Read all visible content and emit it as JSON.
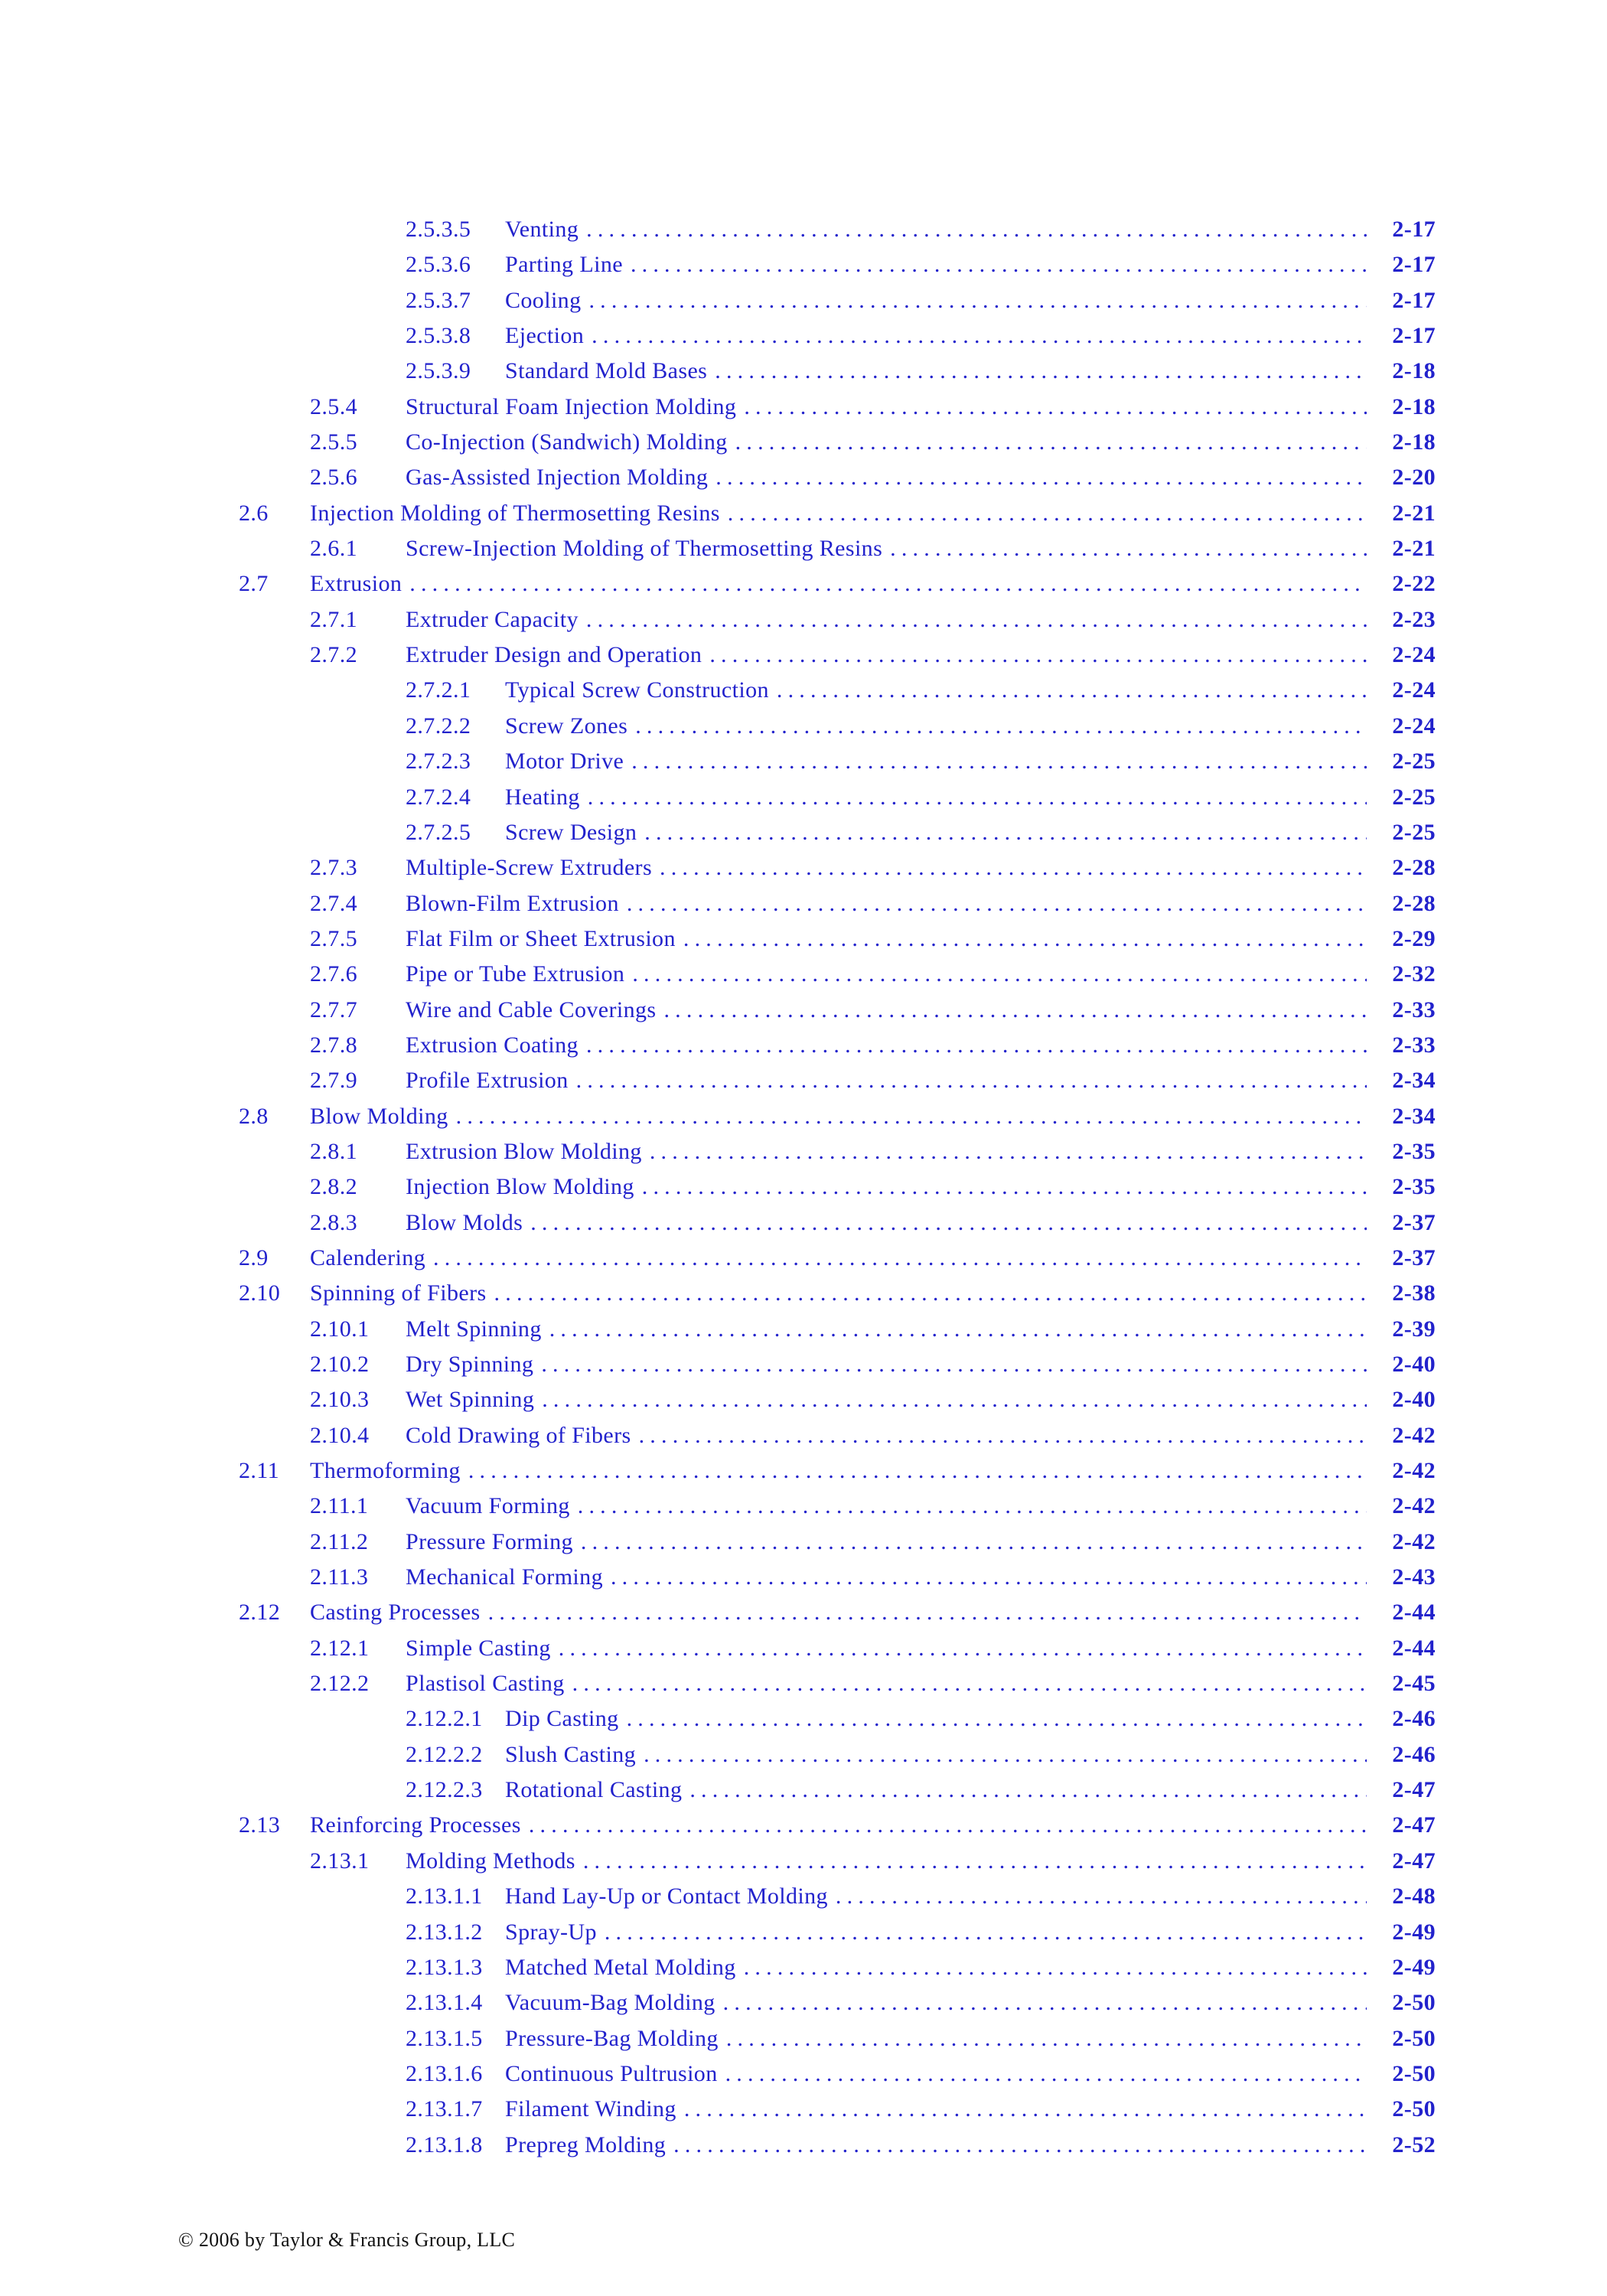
{
  "page": {
    "link_color": "#2222cc",
    "footer_color": "#111111",
    "footer_text": "© 2006 by Taylor & Francis Group, LLC"
  },
  "toc": {
    "entries": [
      {
        "number": "2.5.3.5",
        "title": "Venting",
        "page": "2-17",
        "level": 4
      },
      {
        "number": "2.5.3.6",
        "title": "Parting Line",
        "page": "2-17",
        "level": 4
      },
      {
        "number": "2.5.3.7",
        "title": "Cooling",
        "page": "2-17",
        "level": 4
      },
      {
        "number": "2.5.3.8",
        "title": "Ejection",
        "page": "2-17",
        "level": 4
      },
      {
        "number": "2.5.3.9",
        "title": "Standard Mold Bases",
        "page": "2-18",
        "level": 4
      },
      {
        "number": "2.5.4",
        "title": "Structural Foam Injection Molding",
        "page": "2-18",
        "level": 3
      },
      {
        "number": "2.5.5",
        "title": "Co-Injection (Sandwich) Molding",
        "page": "2-18",
        "level": 3
      },
      {
        "number": "2.5.6",
        "title": "Gas-Assisted Injection Molding",
        "page": "2-20",
        "level": 3
      },
      {
        "number": "2.6",
        "title": "Injection Molding of Thermosetting Resins",
        "page": "2-21",
        "level": 2
      },
      {
        "number": "2.6.1",
        "title": "Screw-Injection Molding of Thermosetting Resins",
        "page": "2-21",
        "level": 3
      },
      {
        "number": "2.7",
        "title": "Extrusion",
        "page": "2-22",
        "level": 2
      },
      {
        "number": "2.7.1",
        "title": "Extruder Capacity",
        "page": "2-23",
        "level": 3
      },
      {
        "number": "2.7.2",
        "title": "Extruder Design and Operation",
        "page": "2-24",
        "level": 3
      },
      {
        "number": "2.7.2.1",
        "title": "Typical Screw Construction",
        "page": "2-24",
        "level": 4
      },
      {
        "number": "2.7.2.2",
        "title": "Screw Zones",
        "page": "2-24",
        "level": 4
      },
      {
        "number": "2.7.2.3",
        "title": "Motor Drive",
        "page": "2-25",
        "level": 4
      },
      {
        "number": "2.7.2.4",
        "title": "Heating",
        "page": "2-25",
        "level": 4
      },
      {
        "number": "2.7.2.5",
        "title": "Screw Design",
        "page": "2-25",
        "level": 4
      },
      {
        "number": "2.7.3",
        "title": "Multiple-Screw Extruders",
        "page": "2-28",
        "level": 3
      },
      {
        "number": "2.7.4",
        "title": "Blown-Film Extrusion",
        "page": "2-28",
        "level": 3
      },
      {
        "number": "2.7.5",
        "title": "Flat Film or Sheet Extrusion",
        "page": "2-29",
        "level": 3
      },
      {
        "number": "2.7.6",
        "title": "Pipe or Tube Extrusion",
        "page": "2-32",
        "level": 3
      },
      {
        "number": "2.7.7",
        "title": "Wire and Cable Coverings",
        "page": "2-33",
        "level": 3
      },
      {
        "number": "2.7.8",
        "title": "Extrusion Coating",
        "page": "2-33",
        "level": 3
      },
      {
        "number": "2.7.9",
        "title": "Profile Extrusion",
        "page": "2-34",
        "level": 3
      },
      {
        "number": "2.8",
        "title": "Blow Molding",
        "page": "2-34",
        "level": 2
      },
      {
        "number": "2.8.1",
        "title": "Extrusion Blow Molding",
        "page": "2-35",
        "level": 3
      },
      {
        "number": "2.8.2",
        "title": "Injection Blow Molding",
        "page": "2-35",
        "level": 3
      },
      {
        "number": "2.8.3",
        "title": "Blow Molds",
        "page": "2-37",
        "level": 3
      },
      {
        "number": "2.9",
        "title": "Calendering",
        "page": "2-37",
        "level": 2
      },
      {
        "number": "2.10",
        "title": "Spinning of Fibers",
        "page": "2-38",
        "level": 2
      },
      {
        "number": "2.10.1",
        "title": "Melt Spinning",
        "page": "2-39",
        "level": 3
      },
      {
        "number": "2.10.2",
        "title": "Dry Spinning",
        "page": "2-40",
        "level": 3
      },
      {
        "number": "2.10.3",
        "title": "Wet Spinning",
        "page": "2-40",
        "level": 3
      },
      {
        "number": "2.10.4",
        "title": "Cold Drawing of Fibers",
        "page": "2-42",
        "level": 3
      },
      {
        "number": "2.11",
        "title": "Thermoforming",
        "page": "2-42",
        "level": 2
      },
      {
        "number": "2.11.1",
        "title": "Vacuum Forming",
        "page": "2-42",
        "level": 3
      },
      {
        "number": "2.11.2",
        "title": "Pressure Forming",
        "page": "2-42",
        "level": 3
      },
      {
        "number": "2.11.3",
        "title": "Mechanical Forming",
        "page": "2-43",
        "level": 3
      },
      {
        "number": "2.12",
        "title": "Casting Processes",
        "page": "2-44",
        "level": 2
      },
      {
        "number": "2.12.1",
        "title": "Simple Casting",
        "page": "2-44",
        "level": 3
      },
      {
        "number": "2.12.2",
        "title": "Plastisol Casting",
        "page": "2-45",
        "level": 3
      },
      {
        "number": "2.12.2.1",
        "title": "Dip Casting",
        "page": "2-46",
        "level": 4
      },
      {
        "number": "2.12.2.2",
        "title": "Slush Casting",
        "page": "2-46",
        "level": 4
      },
      {
        "number": "2.12.2.3",
        "title": "Rotational Casting",
        "page": "2-47",
        "level": 4
      },
      {
        "number": "2.13",
        "title": "Reinforcing Processes",
        "page": "2-47",
        "level": 2
      },
      {
        "number": "2.13.1",
        "title": "Molding Methods",
        "page": "2-47",
        "level": 3
      },
      {
        "number": "2.13.1.1",
        "title": "Hand Lay-Up or Contact Molding",
        "page": "2-48",
        "level": 4
      },
      {
        "number": "2.13.1.2",
        "title": "Spray-Up",
        "page": "2-49",
        "level": 4
      },
      {
        "number": "2.13.1.3",
        "title": "Matched Metal Molding",
        "page": "2-49",
        "level": 4
      },
      {
        "number": "2.13.1.4",
        "title": "Vacuum-Bag Molding",
        "page": "2-50",
        "level": 4
      },
      {
        "number": "2.13.1.5",
        "title": "Pressure-Bag Molding",
        "page": "2-50",
        "level": 4
      },
      {
        "number": "2.13.1.6",
        "title": "Continuous Pultrusion",
        "page": "2-50",
        "level": 4
      },
      {
        "number": "2.13.1.7",
        "title": "Filament Winding",
        "page": "2-50",
        "level": 4
      },
      {
        "number": "2.13.1.8",
        "title": "Prepreg Molding",
        "page": "2-52",
        "level": 4
      }
    ]
  }
}
